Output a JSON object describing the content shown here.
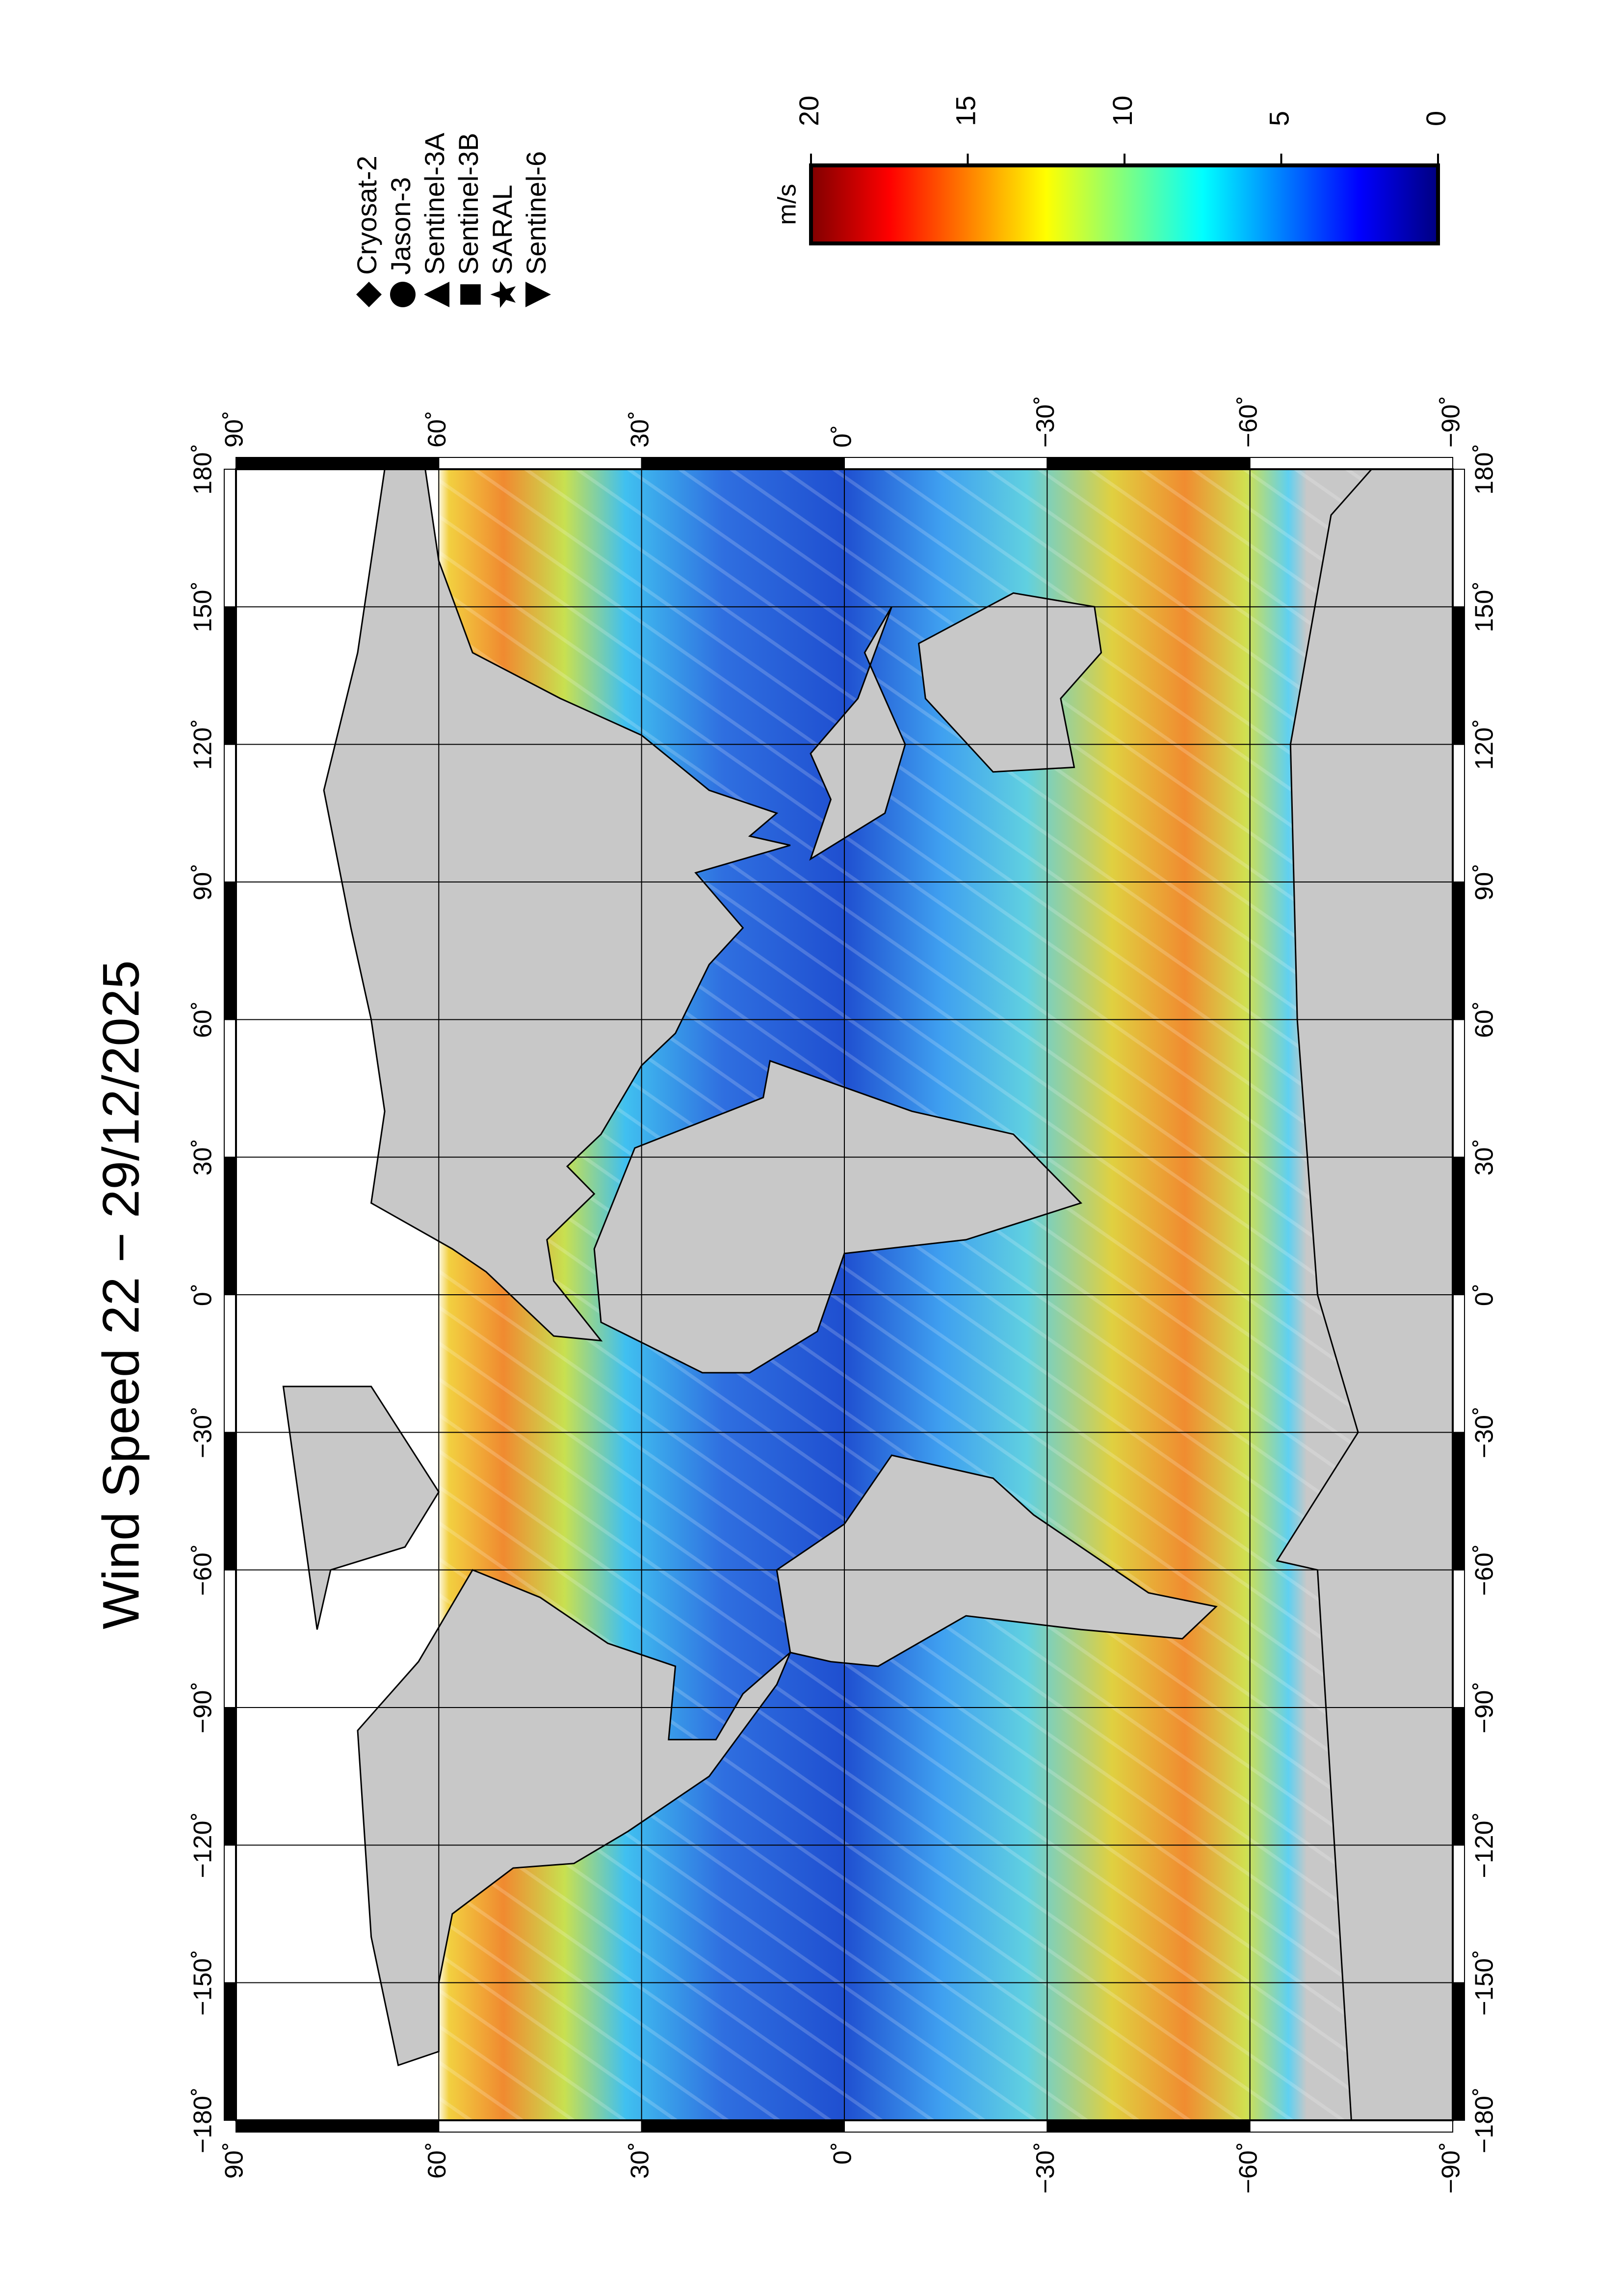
{
  "chart_data": {
    "type": "map",
    "title": "Wind Speed 22 − 29/12/2025",
    "xlim": [
      -180,
      180
    ],
    "ylim": [
      -90,
      90
    ],
    "xticks": [
      {
        "value": -180,
        "label": "−180˚"
      },
      {
        "value": -150,
        "label": "−150˚"
      },
      {
        "value": -120,
        "label": "−120˚"
      },
      {
        "value": -90,
        "label": "−90˚"
      },
      {
        "value": -60,
        "label": "−60˚"
      },
      {
        "value": -30,
        "label": "−30˚"
      },
      {
        "value": 0,
        "label": "0˚"
      },
      {
        "value": 30,
        "label": "30˚"
      },
      {
        "value": 60,
        "label": "60˚"
      },
      {
        "value": 90,
        "label": "90˚"
      },
      {
        "value": 120,
        "label": "120˚"
      },
      {
        "value": 150,
        "label": "150˚"
      },
      {
        "value": 180,
        "label": "180˚"
      }
    ],
    "yticks": [
      {
        "value": 90,
        "label": "90˚"
      },
      {
        "value": 60,
        "label": "60˚"
      },
      {
        "value": 30,
        "label": "30˚"
      },
      {
        "value": 0,
        "label": "0˚"
      },
      {
        "value": -30,
        "label": "−30˚"
      },
      {
        "value": -60,
        "label": "−60˚"
      },
      {
        "value": -90,
        "label": "−90˚"
      }
    ],
    "grid": true,
    "legend": [
      "Cryosat-2",
      "Jason-3",
      "Sentinel-3A",
      "Sentinel-3B",
      "SARAL",
      "Sentinel-6"
    ],
    "colorbar": {
      "label": "m/s",
      "lim": [
        0,
        20
      ],
      "ticks": [
        0,
        5,
        10,
        15,
        20
      ]
    }
  }
}
